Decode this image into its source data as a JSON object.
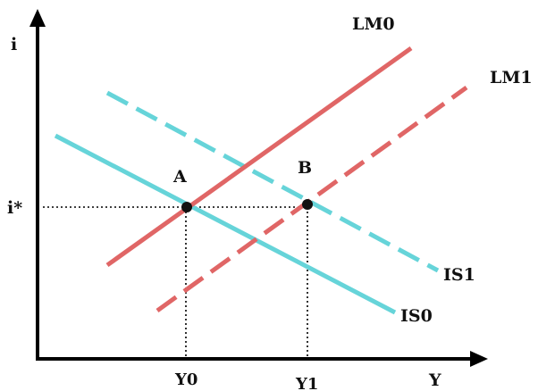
{
  "axes": {
    "y_label": "i",
    "x_label": "Y"
  },
  "curves": {
    "lm0": {
      "label": "LM0",
      "color": "#e06666",
      "style": "solid"
    },
    "lm1": {
      "label": "LM1",
      "color": "#e06666",
      "style": "dashed"
    },
    "is0": {
      "label": "IS0",
      "color": "#66d4d9",
      "style": "solid"
    },
    "is1": {
      "label": "IS1",
      "color": "#66d4d9",
      "style": "dashed"
    }
  },
  "points": {
    "a": {
      "label": "A"
    },
    "b": {
      "label": "B"
    }
  },
  "levels": {
    "interest_rate": "i*",
    "output_0": "Y0",
    "output_1": "Y1"
  }
}
